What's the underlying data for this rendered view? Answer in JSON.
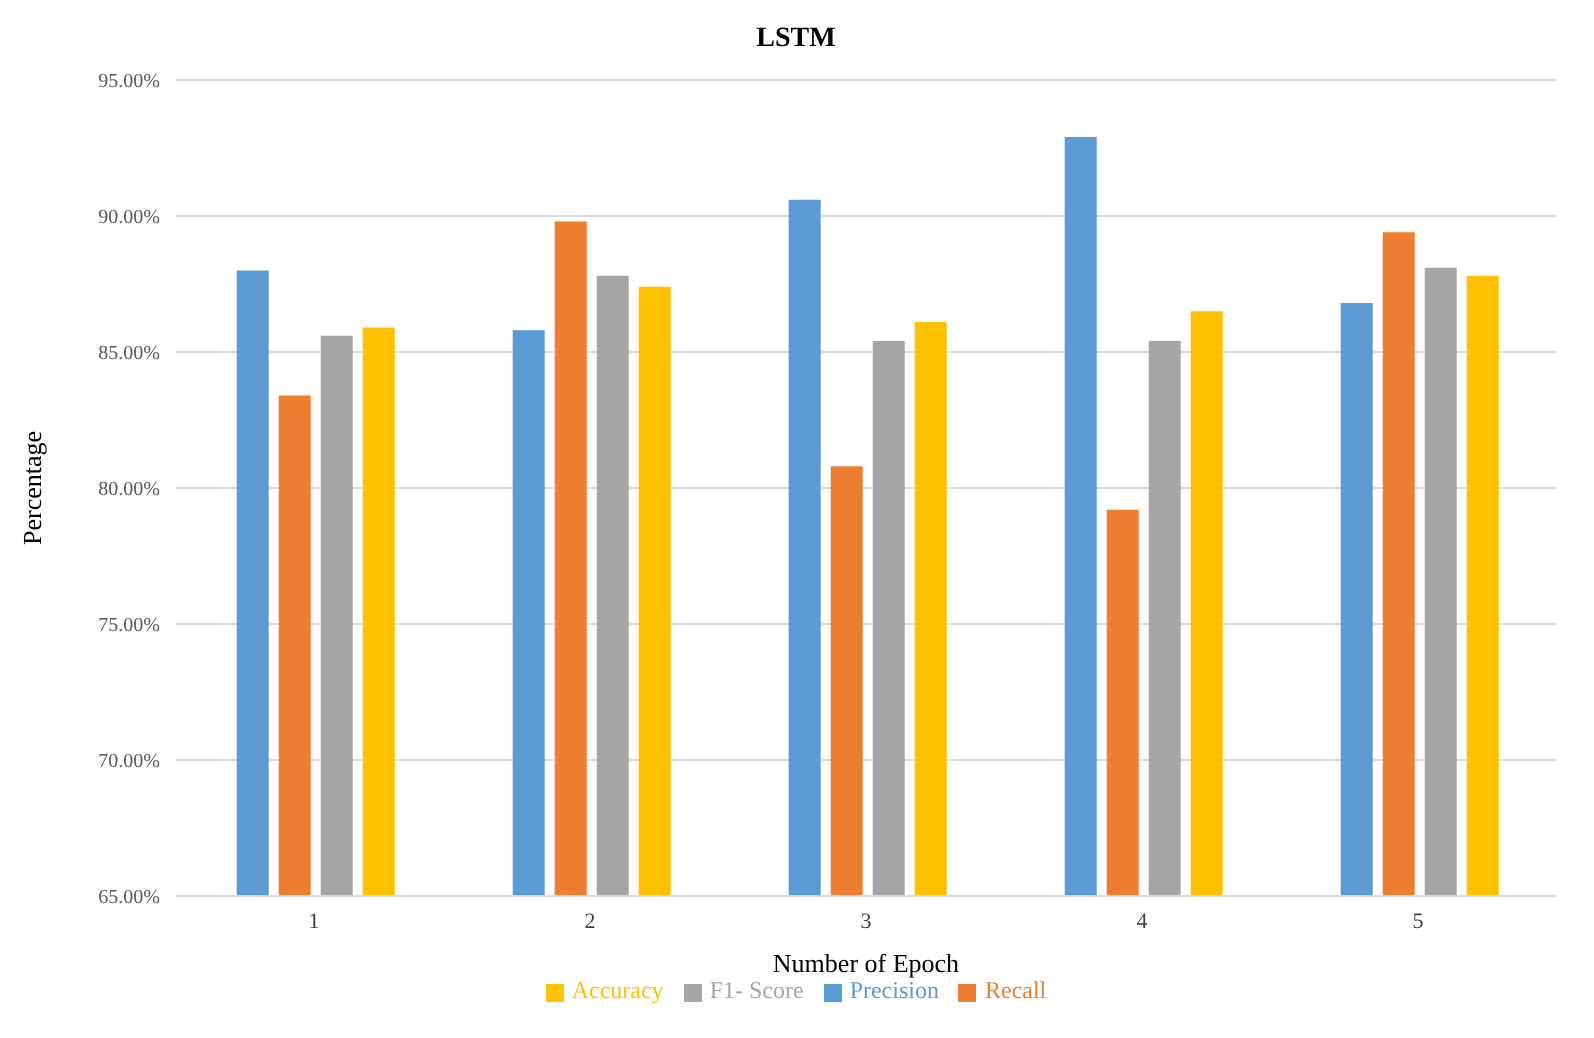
{
  "chart_data": {
    "type": "bar",
    "title": "LSTM",
    "xlabel": "Number of Epoch",
    "ylabel": "Percentage",
    "categories": [
      "1",
      "2",
      "3",
      "4",
      "5"
    ],
    "series": [
      {
        "name": "Precision",
        "color": "#5b9bd5",
        "values": [
          88.0,
          85.8,
          90.6,
          92.9,
          86.8
        ]
      },
      {
        "name": "Recall",
        "color": "#ed7d31",
        "values": [
          83.4,
          89.8,
          80.8,
          79.2,
          89.4
        ]
      },
      {
        "name": "F1- Score",
        "color": "#a5a5a5",
        "values": [
          85.6,
          87.8,
          85.4,
          85.4,
          88.1
        ]
      },
      {
        "name": "Accuracy",
        "color": "#ffc000",
        "values": [
          85.9,
          87.4,
          86.1,
          86.5,
          87.8
        ]
      }
    ],
    "ylim": [
      65,
      95
    ],
    "yticks": [
      {
        "value": 65,
        "label": "65.00%"
      },
      {
        "value": 70,
        "label": "70.00%"
      },
      {
        "value": 75,
        "label": "75.00%"
      },
      {
        "value": 80,
        "label": "80.00%"
      },
      {
        "value": 85,
        "label": "85.00%"
      },
      {
        "value": 90,
        "label": "90.00%"
      },
      {
        "value": 95,
        "label": "95.00%"
      }
    ],
    "grid": "y",
    "legend": "bottom"
  }
}
